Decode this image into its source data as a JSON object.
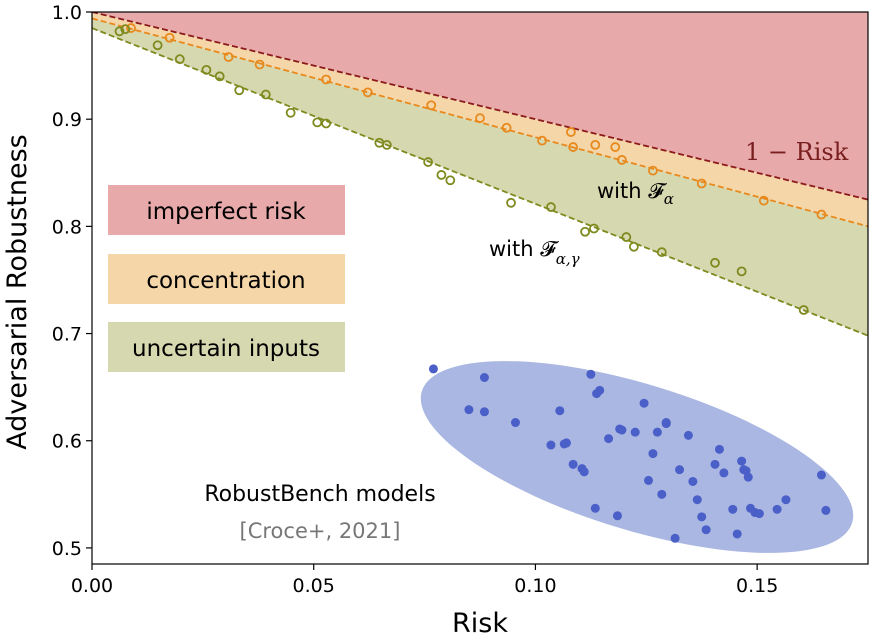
{
  "chart_data": {
    "type": "scatter",
    "xlabel": "Risk",
    "ylabel": "Adversarial Robustness",
    "xlim": [
      0.0,
      0.175
    ],
    "ylim": [
      0.485,
      1.0
    ],
    "x_ticks": [
      0.0,
      0.05,
      0.1,
      0.15
    ],
    "x_tick_labels": [
      "0.00",
      "0.05",
      "0.10",
      "0.15"
    ],
    "y_ticks": [
      0.5,
      0.6,
      0.7,
      0.8,
      0.9,
      1.0
    ],
    "y_tick_labels": [
      "0.5",
      "0.6",
      "0.7",
      "0.8",
      "0.9",
      "1.0"
    ],
    "grid": false,
    "lines": [
      {
        "id": "one-minus-risk",
        "label": "1 − Risk",
        "x": [
          0.0,
          0.175
        ],
        "y": [
          1.0,
          0.825
        ],
        "color": "#8b1a1a"
      },
      {
        "id": "with-f-alpha",
        "label": "with 𝓕",
        "sub": "α",
        "x": [
          0.0,
          0.175
        ],
        "y": [
          0.994,
          0.8
        ],
        "color": "#e8891d"
      },
      {
        "id": "with-f-alpha-gamma",
        "label": "with 𝓕",
        "sub": "α,γ",
        "x": [
          0.0,
          0.175
        ],
        "y": [
          0.985,
          0.698
        ],
        "color": "#7f8a1e"
      }
    ],
    "regions": [
      {
        "label": "imperfect risk",
        "color": "#e8a9aa"
      },
      {
        "label": "concentration",
        "color": "#f5d6a8"
      },
      {
        "label": "uncertain inputs",
        "color": "#d6d8b0"
      }
    ],
    "series": [
      {
        "id": "concentration-points",
        "color": "#e8891d",
        "x": [
          0.0088,
          0.0175,
          0.0308,
          0.0378,
          0.0528,
          0.0622,
          0.0765,
          0.0875,
          0.0935,
          0.1015,
          0.108,
          0.1085,
          0.1135,
          0.118,
          0.1195,
          0.1265,
          0.1375,
          0.1515,
          0.1645
        ],
        "y": [
          0.985,
          0.976,
          0.958,
          0.951,
          0.937,
          0.925,
          0.913,
          0.901,
          0.892,
          0.88,
          0.888,
          0.874,
          0.876,
          0.874,
          0.862,
          0.852,
          0.84,
          0.824,
          0.811
        ]
      },
      {
        "id": "uncertain-input-points",
        "color": "#7f8a1e",
        "x": [
          0.0062,
          0.0075,
          0.0148,
          0.0198,
          0.0258,
          0.0288,
          0.0332,
          0.0392,
          0.0448,
          0.0508,
          0.0528,
          0.0648,
          0.0665,
          0.0758,
          0.0788,
          0.0808,
          0.0945,
          0.1035,
          0.1112,
          0.1132,
          0.1205,
          0.1222,
          0.1285,
          0.1405,
          0.1465,
          0.1605
        ],
        "y": [
          0.982,
          0.984,
          0.969,
          0.956,
          0.946,
          0.94,
          0.927,
          0.923,
          0.906,
          0.897,
          0.896,
          0.878,
          0.876,
          0.86,
          0.848,
          0.843,
          0.822,
          0.818,
          0.795,
          0.798,
          0.79,
          0.781,
          0.776,
          0.766,
          0.758,
          0.722
        ]
      },
      {
        "id": "robustbench-models",
        "label": "RobustBench models",
        "color": "#4a5fc8",
        "x": [
          0.077,
          0.085,
          0.0885,
          0.0885,
          0.0955,
          0.1035,
          0.1055,
          0.1065,
          0.107,
          0.1085,
          0.1105,
          0.111,
          0.1125,
          0.1135,
          0.1138,
          0.1145,
          0.1165,
          0.1185,
          0.119,
          0.1195,
          0.1225,
          0.1245,
          0.1255,
          0.1265,
          0.1275,
          0.1285,
          0.1295,
          0.1295,
          0.1315,
          0.1325,
          0.1345,
          0.1355,
          0.1365,
          0.1375,
          0.1385,
          0.1405,
          0.1415,
          0.1425,
          0.1445,
          0.1455,
          0.1465,
          0.147,
          0.1475,
          0.148,
          0.1485,
          0.1495,
          0.1505,
          0.1545,
          0.1565,
          0.1645,
          0.1655
        ],
        "y": [
          0.667,
          0.629,
          0.627,
          0.659,
          0.617,
          0.596,
          0.628,
          0.597,
          0.598,
          0.578,
          0.574,
          0.571,
          0.662,
          0.537,
          0.644,
          0.647,
          0.602,
          0.53,
          0.611,
          0.61,
          0.608,
          0.635,
          0.563,
          0.588,
          0.608,
          0.55,
          0.616,
          0.617,
          0.509,
          0.573,
          0.605,
          0.562,
          0.545,
          0.529,
          0.517,
          0.578,
          0.592,
          0.57,
          0.536,
          0.513,
          0.581,
          0.573,
          0.572,
          0.566,
          0.537,
          0.533,
          0.532,
          0.536,
          0.545,
          0.568,
          0.535
        ]
      }
    ],
    "annotations": {
      "one_minus_risk": "1 − Risk",
      "with_f_alpha_prefix": "with 𝓕",
      "with_f_alpha_sub": "α",
      "with_f_alpha_gamma_prefix": "with 𝓕",
      "with_f_alpha_gamma_sub": "α,γ",
      "cluster_title": "RobustBench models",
      "cluster_citation": "[Croce+, 2021]"
    },
    "ellipse_color": "#8e9fd8"
  }
}
